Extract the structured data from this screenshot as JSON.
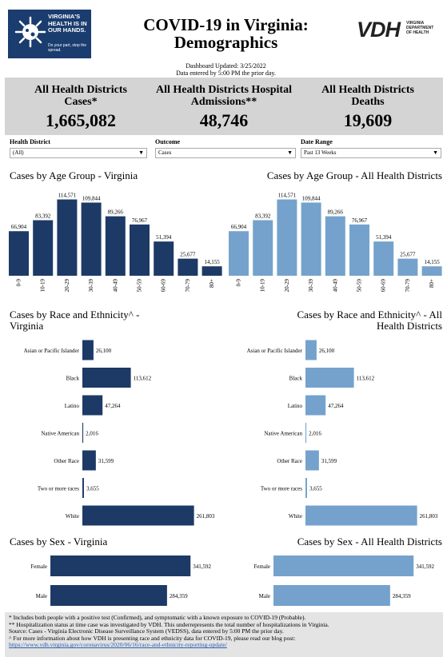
{
  "header": {
    "logo_text": "VIRGINIA'S HEALTH IS IN OUR HANDS.",
    "logo_sub": "Do your part, stop the spread.",
    "title_line1": "COVID-19 in Virginia:",
    "title_line2": "Demographics",
    "vdh_mark": "VDH",
    "vdh_text": "VIRGINIA DEPARTMENT OF HEALTH",
    "updated": "Dashboard Updated: 3/25/2022",
    "entered": "Data entered by 5:00 PM the prior day."
  },
  "stats": [
    {
      "label": "All Health Districts Cases*",
      "value": "1,665,082"
    },
    {
      "label": "All Health Districts Hospital Admissions**",
      "value": "48,746"
    },
    {
      "label": "All Health Districts Deaths",
      "value": "19,609"
    }
  ],
  "filters": [
    {
      "label": "Health District",
      "value": "(All)"
    },
    {
      "label": "Outcome",
      "value": "Cases"
    },
    {
      "label": "Date Range",
      "value": "Past 13 Weeks"
    }
  ],
  "colors": {
    "dark": "#1d3a66",
    "light": "#75a2cc"
  },
  "chart_data": [
    {
      "type": "bar",
      "title": "Cases by Age Group - Virginia",
      "categories": [
        "0-9",
        "10-19",
        "20-29",
        "30-39",
        "40-49",
        "50-59",
        "60-69",
        "70-79",
        "80+"
      ],
      "values": [
        66904,
        83392,
        114571,
        109844,
        89266,
        76967,
        51394,
        25677,
        14155
      ],
      "value_labels": [
        "66,904",
        "83,392",
        "114,571",
        "109,844",
        "89,266",
        "76,967",
        "51,394",
        "25,677",
        "14,155"
      ]
    },
    {
      "type": "bar",
      "title": "Cases by Age Group - All Health Districts",
      "categories": [
        "0-9",
        "10-19",
        "20-29",
        "30-39",
        "40-49",
        "50-59",
        "60-69",
        "70-79",
        "80+"
      ],
      "values": [
        66904,
        83392,
        114571,
        109844,
        89266,
        76967,
        51394,
        25677,
        14155
      ],
      "value_labels": [
        "66,904",
        "83,392",
        "114,571",
        "109,844",
        "89,266",
        "76,967",
        "51,394",
        "25,677",
        "14,155"
      ]
    },
    {
      "type": "bar",
      "orientation": "horizontal",
      "title": "Cases by Race and Ethnicity^ - Virginia",
      "categories": [
        "Asian or Pacific Islander",
        "Black",
        "Latino",
        "Native American",
        "Other Race",
        "Two or more races",
        "White"
      ],
      "values": [
        26100,
        113612,
        47264,
        2016,
        31599,
        3655,
        261803
      ],
      "value_labels": [
        "26,100",
        "113,612",
        "47,264",
        "2,016",
        "31,599",
        "3,655",
        "261,803"
      ]
    },
    {
      "type": "bar",
      "orientation": "horizontal",
      "title": "Cases by Race and Ethnicity^ - All Health Districts",
      "categories": [
        "Asian or Pacific Islander",
        "Black",
        "Latino",
        "Native American",
        "Other Race",
        "Two or more races",
        "White"
      ],
      "values": [
        26100,
        113612,
        47264,
        2016,
        31599,
        3655,
        261803
      ],
      "value_labels": [
        "26,100",
        "113,612",
        "47,264",
        "2,016",
        "31,599",
        "3,655",
        "261,803"
      ]
    },
    {
      "type": "bar",
      "orientation": "horizontal",
      "title": "Cases by Sex - Virginia",
      "categories": [
        "Female",
        "Male"
      ],
      "values": [
        341592,
        284359
      ],
      "value_labels": [
        "341,592",
        "284,359"
      ]
    },
    {
      "type": "bar",
      "orientation": "horizontal",
      "title": "Cases by Sex - All Health Districts",
      "categories": [
        "Female",
        "Male"
      ],
      "values": [
        341592,
        284359
      ],
      "value_labels": [
        "341,592",
        "284,359"
      ]
    }
  ],
  "footer": {
    "lines": [
      "* Includes both people with a positive test (Confirmed), and symptomatic with a known exposure to COVID-19 (Probable).",
      "** Hospitalization status at time case was investigated by VDH. This underrepresents the total number of hospitalizations in Virginia.",
      "Source:  Cases - Virginia Electronic Disease Surveillance System (VEDSS), data entered by 5:00 PM the prior day.",
      "^ For more information about how VDH is presenting race and ethnicity data for COVID-19, please read our blog post:"
    ],
    "link": "https://www.vdh.virginia.gov/coronavirus/2020/06/16/race-and-ethnicity-reporting-update/"
  }
}
